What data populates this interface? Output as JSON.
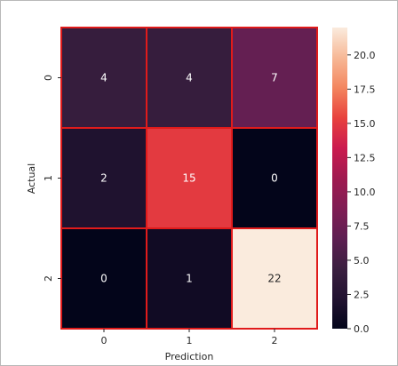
{
  "chart_data": {
    "type": "heatmap",
    "xlabel": "Prediction",
    "ylabel": "Actual",
    "x_categories": [
      "0",
      "1",
      "2"
    ],
    "y_categories": [
      "0",
      "1",
      "2"
    ],
    "matrix": [
      [
        4,
        4,
        7
      ],
      [
        2,
        15,
        0
      ],
      [
        0,
        1,
        22
      ]
    ],
    "colorscale": "rocket",
    "vmin": 0,
    "vmax": 22,
    "colorbar_ticks": [
      "0.0",
      "2.5",
      "5.0",
      "7.5",
      "10.0",
      "12.5",
      "15.0",
      "17.5",
      "20.0"
    ],
    "cell_border_color": "#e01b1b",
    "annotation_light_color": "#ffffff",
    "annotation_dark_color": "#262626",
    "grid": false
  }
}
